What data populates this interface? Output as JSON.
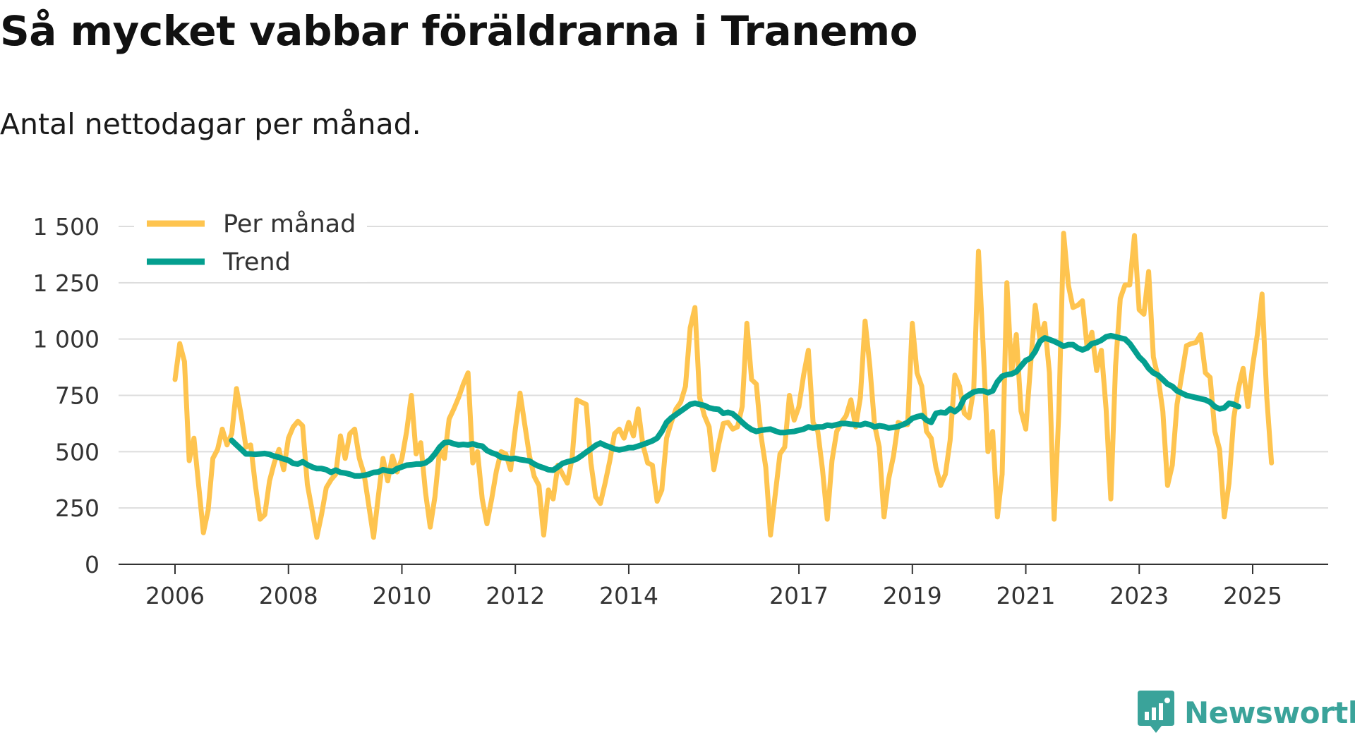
{
  "chart_data": {
    "type": "line",
    "title": "Så mycket vabbar föräldrarna i Tranemo",
    "subtitle": "Antal nettodagar per månad.",
    "xlabel": "",
    "ylabel": "",
    "ylim": [
      0,
      1500
    ],
    "yticks": [
      0,
      250,
      500,
      750,
      1000,
      1250,
      1500
    ],
    "ytick_labels": [
      "0",
      "250",
      "500",
      "750",
      "1 000",
      "1 250",
      "1 500"
    ],
    "xticks": [
      2006,
      2008,
      2010,
      2012,
      2014,
      2017,
      2019,
      2021,
      2023,
      2025
    ],
    "xtick_labels": [
      "2006",
      "2008",
      "2010",
      "2012",
      "2014",
      "2017",
      "2019",
      "2021",
      "2023",
      "2025"
    ],
    "legend": [
      "Per månad",
      "Trend"
    ],
    "legend_position": "top-left",
    "grid": true,
    "colors": {
      "monthly": "#fec44f",
      "trend": "#049f8f",
      "grid": "#dddddd",
      "axis": "#333333"
    },
    "series": [
      {
        "name": "Per månad",
        "x_start": 2006.0,
        "x_step": 0.08333,
        "values": [
          820,
          980,
          900,
          460,
          560,
          350,
          140,
          240,
          470,
          510,
          600,
          530,
          580,
          780,
          660,
          520,
          530,
          350,
          200,
          220,
          370,
          450,
          510,
          420,
          560,
          610,
          635,
          615,
          355,
          240,
          120,
          220,
          340,
          375,
          400,
          570,
          470,
          580,
          600,
          470,
          400,
          260,
          120,
          300,
          470,
          370,
          480,
          410,
          470,
          590,
          750,
          490,
          540,
          320,
          165,
          300,
          510,
          470,
          645,
          690,
          740,
          800,
          850,
          450,
          500,
          290,
          180,
          290,
          415,
          500,
          490,
          420,
          600,
          760,
          620,
          480,
          390,
          350,
          130,
          330,
          290,
          440,
          400,
          360,
          470,
          730,
          720,
          710,
          450,
          300,
          270,
          360,
          460,
          580,
          600,
          560,
          630,
          570,
          690,
          530,
          450,
          440,
          280,
          330,
          560,
          630,
          690,
          720,
          790,
          1050,
          1140,
          740,
          660,
          610,
          420,
          530,
          625,
          630,
          600,
          610,
          700,
          1070,
          820,
          800,
          570,
          430,
          130,
          310,
          490,
          520,
          750,
          640,
          700,
          840,
          950,
          630,
          590,
          420,
          200,
          460,
          590,
          630,
          660,
          730,
          610,
          740,
          1080,
          880,
          620,
          520,
          210,
          380,
          480,
          630,
          620,
          620,
          1070,
          850,
          790,
          590,
          560,
          430,
          350,
          400,
          550,
          840,
          790,
          670,
          650,
          780,
          1390,
          960,
          500,
          590,
          210,
          400,
          1250,
          850,
          1020,
          680,
          600,
          880,
          1150,
          1000,
          1070,
          850,
          200,
          680,
          1470,
          1240,
          1140,
          1150,
          1170,
          960,
          1030,
          860,
          950,
          690,
          290,
          880,
          1180,
          1240,
          1240,
          1460,
          1130,
          1110,
          1300,
          920,
          830,
          680,
          350,
          440,
          710,
          840,
          970,
          980,
          985,
          1020,
          850,
          830,
          590,
          510,
          210,
          360,
          650,
          780,
          870,
          700,
          880,
          1020,
          1200,
          740,
          450
        ]
      },
      {
        "name": "Trend",
        "x_start": 2007.0,
        "x_step": 0.08333,
        "values": [
          550,
          530,
          510,
          490,
          490,
          488,
          490,
          492,
          488,
          480,
          475,
          468,
          462,
          448,
          445,
          455,
          442,
          432,
          425,
          425,
          420,
          408,
          418,
          408,
          405,
          400,
          392,
          392,
          395,
          400,
          408,
          410,
          420,
          415,
          412,
          425,
          432,
          440,
          442,
          445,
          445,
          450,
          465,
          490,
          520,
          540,
          542,
          535,
          530,
          532,
          530,
          535,
          528,
          525,
          505,
          495,
          488,
          475,
          472,
          468,
          470,
          465,
          462,
          458,
          445,
          435,
          428,
          420,
          418,
          432,
          448,
          455,
          460,
          468,
          482,
          498,
          512,
          528,
          538,
          528,
          520,
          512,
          508,
          512,
          518,
          518,
          525,
          532,
          540,
          548,
          560,
          590,
          630,
          650,
          665,
          680,
          695,
          710,
          715,
          710,
          705,
          695,
          690,
          688,
          670,
          675,
          668,
          650,
          630,
          612,
          598,
          590,
          595,
          598,
          600,
          592,
          585,
          585,
          588,
          590,
          595,
          600,
          610,
          605,
          610,
          610,
          618,
          615,
          620,
          625,
          625,
          622,
          620,
          618,
          625,
          620,
          610,
          615,
          612,
          605,
          608,
          612,
          620,
          630,
          648,
          655,
          660,
          640,
          630,
          670,
          675,
          672,
          690,
          678,
          695,
          738,
          752,
          765,
          770,
          770,
          762,
          770,
          810,
          835,
          842,
          845,
          855,
          880,
          905,
          915,
          945,
          990,
          1005,
          998,
          990,
          980,
          968,
          975,
          975,
          960,
          952,
          960,
          980,
          985,
          995,
          1010,
          1015,
          1010,
          1005,
          1000,
          980,
          950,
          920,
          900,
          870,
          850,
          840,
          820,
          800,
          790,
          770,
          760,
          750,
          745,
          740,
          735,
          730,
          720,
          700,
          690,
          695,
          715,
          710,
          700
        ]
      }
    ]
  },
  "branding": {
    "logo_text": "Newsworthy",
    "logo_color": "#3aa39a"
  }
}
